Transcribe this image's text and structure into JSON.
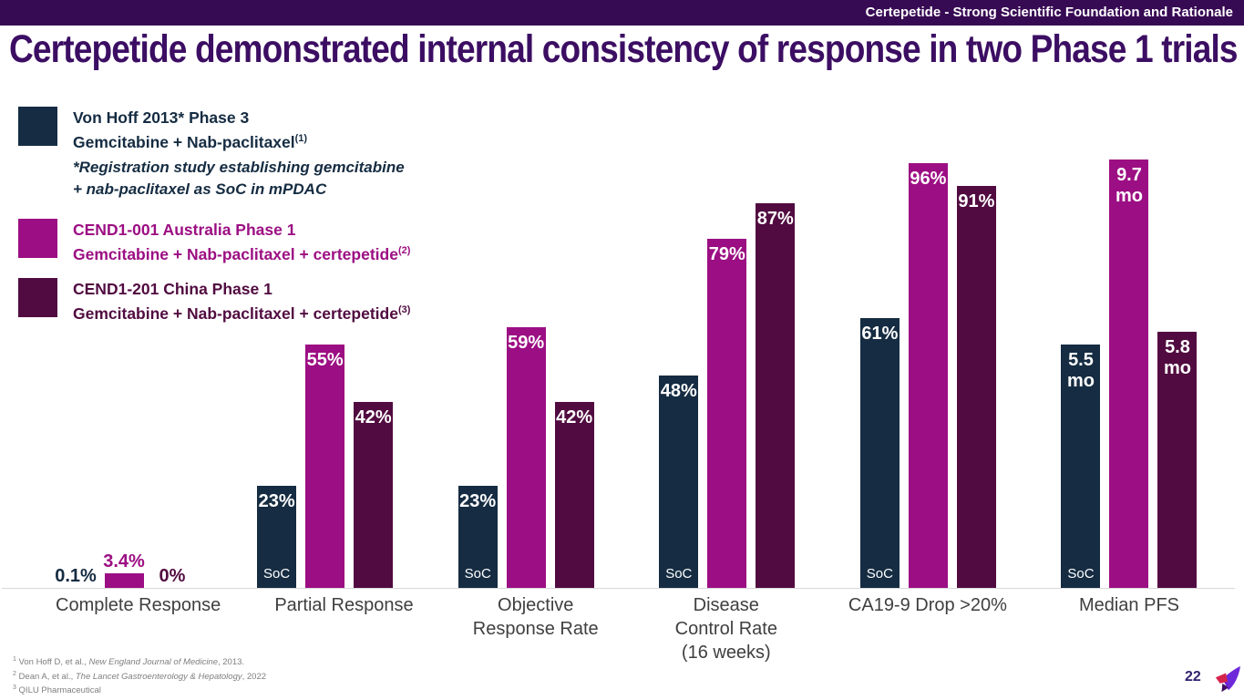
{
  "colors": {
    "topbar_bg": "#370a54",
    "title": "#3c0e63",
    "navy": "#152c42",
    "category": "#3f3f3f",
    "axis": "#d9d9d9",
    "footnote": "#7f7f7f",
    "pagenum": "#322270"
  },
  "header": {
    "tagline": "Certepetide - Strong Scientific Foundation and Rationale"
  },
  "title": "Certepetide demonstrated internal consistency of response in two Phase 1 trials",
  "legend": {
    "items": [
      {
        "color": "#152c42",
        "line1": "Von Hoff 2013* Phase 3",
        "line2": "Gemcitabine + Nab-paclitaxel",
        "sup": "(1)"
      },
      {
        "color": "#9c0e83",
        "line1": "CEND1-001 Australia Phase 1",
        "line2": "Gemcitabine + Nab-paclitaxel + certepetide",
        "sup": "(2)"
      },
      {
        "color": "#510b40",
        "line1": "CEND1-201 China Phase 1",
        "line2": "Gemcitabine + Nab-paclitaxel + certepetide",
        "sup": "(3)"
      }
    ],
    "note_line1": "*Registration study establishing gemcitabine",
    "note_line2": "+ nab-paclitaxel as SoC in mPDAC"
  },
  "chart_data": {
    "type": "bar",
    "title": "Certepetide demonstrated internal consistency of response in two Phase 1 trials",
    "categories": [
      [
        "Complete Response"
      ],
      [
        "Partial Response"
      ],
      [
        "Objective",
        "Response Rate"
      ],
      [
        "Disease",
        "Control Rate",
        "(16 weeks)"
      ],
      [
        "CA19-9 Drop >20%"
      ],
      [
        "Median PFS"
      ]
    ],
    "xlabel": "",
    "ylabel": "",
    "ylim_percent": [
      0,
      100
    ],
    "grid": false,
    "legend_position": "upper-left",
    "scale_note": "All categories plotted as percent of 0-100 axis; Median PFS values are months plotted at months x 10",
    "series": [
      {
        "name": "Von Hoff 2013* Phase 3 — Gemcitabine + Nab-paclitaxel (SoC)",
        "color": "#152c42",
        "values": [
          0.1,
          23,
          23,
          48,
          61,
          5.5
        ],
        "units": [
          "%",
          "%",
          "%",
          "%",
          "%",
          "mo"
        ],
        "plotted": [
          0.1,
          23,
          23,
          48,
          61,
          55
        ],
        "labels": [
          [
            "0.1%"
          ],
          [
            "23%"
          ],
          [
            "23%"
          ],
          [
            "48%"
          ],
          [
            "61%"
          ],
          [
            "5.5",
            "mo"
          ]
        ],
        "bar_text": "SoC"
      },
      {
        "name": "CEND1-001 Australia Phase 1 — Gemcitabine + Nab-paclitaxel + certepetide",
        "color": "#9c0e83",
        "values": [
          3.4,
          55,
          59,
          79,
          96,
          9.7
        ],
        "units": [
          "%",
          "%",
          "%",
          "%",
          "%",
          "mo"
        ],
        "plotted": [
          3.4,
          55,
          59,
          79,
          96,
          97
        ],
        "labels": [
          [
            "3.4%"
          ],
          [
            "55%"
          ],
          [
            "59%"
          ],
          [
            "79%"
          ],
          [
            "96%"
          ],
          [
            "9.7",
            "mo"
          ]
        ],
        "bar_text": ""
      },
      {
        "name": "CEND1-201 China Phase 1 — Gemcitabine + Nab-paclitaxel + certepetide",
        "color": "#510b40",
        "values": [
          0,
          42,
          42,
          87,
          91,
          5.8
        ],
        "units": [
          "%",
          "%",
          "%",
          "%",
          "%",
          "mo"
        ],
        "plotted": [
          0,
          42,
          42,
          87,
          91,
          58
        ],
        "labels": [
          [
            "0%"
          ],
          [
            "42%"
          ],
          [
            "42%"
          ],
          [
            "87%"
          ],
          [
            "91%"
          ],
          [
            "5.8",
            "mo"
          ]
        ],
        "bar_text": ""
      }
    ]
  },
  "footnotes": [
    {
      "sup": "1",
      "pre": " Von Hoff D, et al., ",
      "italic": "New England Journal of Medicine",
      "post": ", 2013."
    },
    {
      "sup": "2",
      "pre": " Dean A, et al., ",
      "italic": "The Lancet Gastroenterology & Hepatology",
      "post": ", 2022"
    },
    {
      "sup": "3",
      "pre": " QILU Pharmaceutical",
      "italic": "",
      "post": ""
    }
  ],
  "footer": {
    "page_number": "22"
  }
}
